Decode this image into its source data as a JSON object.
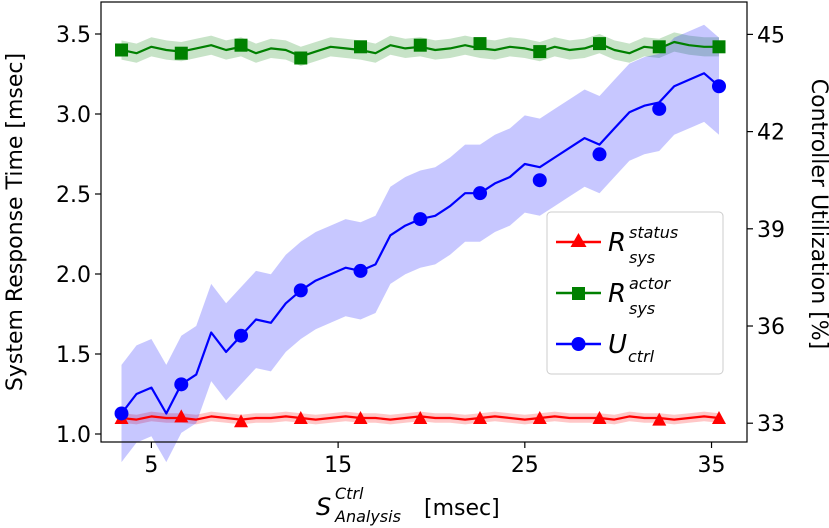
{
  "chart_data": {
    "type": "line",
    "xlabel": {
      "main": "S",
      "sup": "Ctrl",
      "sub": "Analysis",
      "unit": "[msec]"
    },
    "ylabel_left": "System Response Time [msec]",
    "ylabel_right": "Controller Utilization [%]",
    "xlim": [
      2.3,
      36.9
    ],
    "ylim_left": [
      0.95,
      3.7
    ],
    "ylim_right": [
      32.42,
      46.0
    ],
    "xticks": [
      5,
      15,
      25,
      35
    ],
    "yticks_left": [
      1.0,
      1.5,
      2.0,
      2.5,
      3.0,
      3.5
    ],
    "yticks_right": [
      33,
      36,
      39,
      42,
      45
    ],
    "legend_position": "center-right",
    "grid": false,
    "series": [
      {
        "legend_main": "R",
        "legend_sup": "status",
        "legend_sub": "sys",
        "axis": "left",
        "color": "#ff0000",
        "marker": "triangle",
        "x": [
          3.4,
          4.2,
          5.0,
          5.8,
          6.6,
          7.4,
          8.2,
          9.0,
          9.8,
          10.6,
          11.4,
          12.2,
          13.0,
          13.8,
          14.6,
          15.4,
          16.2,
          17.0,
          17.8,
          18.6,
          19.4,
          20.2,
          21.0,
          21.8,
          22.6,
          23.4,
          24.2,
          25.0,
          25.8,
          26.6,
          27.4,
          28.2,
          29.0,
          29.8,
          30.6,
          31.4,
          32.2,
          33.0,
          33.8,
          34.6,
          35.4
        ],
        "y": [
          1.1,
          1.09,
          1.11,
          1.1,
          1.1,
          1.09,
          1.11,
          1.1,
          1.09,
          1.1,
          1.1,
          1.11,
          1.1,
          1.09,
          1.1,
          1.11,
          1.1,
          1.1,
          1.09,
          1.1,
          1.11,
          1.1,
          1.1,
          1.09,
          1.1,
          1.11,
          1.1,
          1.09,
          1.1,
          1.11,
          1.1,
          1.1,
          1.1,
          1.09,
          1.11,
          1.1,
          1.1,
          1.09,
          1.1,
          1.11,
          1.1
        ],
        "band": 0.03,
        "marker_x": [
          3.4,
          6.6,
          9.8,
          13.0,
          16.2,
          19.4,
          22.6,
          25.8,
          29.0,
          32.2,
          35.4
        ],
        "marker_y": [
          1.1,
          1.11,
          1.08,
          1.1,
          1.1,
          1.1,
          1.1,
          1.1,
          1.1,
          1.09,
          1.1
        ]
      },
      {
        "legend_main": "R",
        "legend_sup": "actor",
        "legend_sub": "sys",
        "axis": "left",
        "color": "#008000",
        "marker": "square",
        "x": [
          3.4,
          4.2,
          5.0,
          5.8,
          6.6,
          7.4,
          8.2,
          9.0,
          9.8,
          10.6,
          11.4,
          12.2,
          13.0,
          13.8,
          14.6,
          15.4,
          16.2,
          17.0,
          17.8,
          18.6,
          19.4,
          20.2,
          21.0,
          21.8,
          22.6,
          23.4,
          24.2,
          25.0,
          25.8,
          26.6,
          27.4,
          28.2,
          29.0,
          29.8,
          30.6,
          31.4,
          32.2,
          33.0,
          33.8,
          34.6,
          35.4
        ],
        "y": [
          3.4,
          3.38,
          3.42,
          3.4,
          3.39,
          3.41,
          3.43,
          3.4,
          3.42,
          3.38,
          3.41,
          3.4,
          3.36,
          3.39,
          3.42,
          3.41,
          3.4,
          3.38,
          3.43,
          3.41,
          3.42,
          3.4,
          3.41,
          3.43,
          3.41,
          3.4,
          3.42,
          3.41,
          3.39,
          3.42,
          3.4,
          3.41,
          3.44,
          3.4,
          3.38,
          3.42,
          3.41,
          3.45,
          3.43,
          3.42,
          3.42
        ],
        "band": 0.06,
        "marker_x": [
          3.4,
          6.6,
          9.8,
          13.0,
          16.2,
          19.4,
          22.6,
          25.8,
          29.0,
          32.2,
          35.4
        ],
        "marker_y": [
          3.4,
          3.38,
          3.43,
          3.35,
          3.42,
          3.43,
          3.44,
          3.39,
          3.44,
          3.42,
          3.42
        ]
      },
      {
        "legend_main": "U",
        "legend_sup": "",
        "legend_sub": "ctrl",
        "axis": "right",
        "color": "#0000ff",
        "marker": "circle",
        "x": [
          3.4,
          4.2,
          5.0,
          5.8,
          6.6,
          7.4,
          8.2,
          9.0,
          9.8,
          10.6,
          11.4,
          12.2,
          13.0,
          13.8,
          14.6,
          15.4,
          16.2,
          17.0,
          17.8,
          18.6,
          19.4,
          20.2,
          21.0,
          21.8,
          22.6,
          23.4,
          24.2,
          25.0,
          25.8,
          26.6,
          27.4,
          28.2,
          29.0,
          29.8,
          30.6,
          31.4,
          32.2,
          33.0,
          33.8,
          34.6,
          35.4
        ],
        "y": [
          33.3,
          33.9,
          34.1,
          33.3,
          34.2,
          34.5,
          35.8,
          35.2,
          35.7,
          36.2,
          36.1,
          36.7,
          37.1,
          37.4,
          37.6,
          37.8,
          37.7,
          37.9,
          38.8,
          39.1,
          39.3,
          39.4,
          39.7,
          40.1,
          40.1,
          40.4,
          40.6,
          41.0,
          40.9,
          41.2,
          41.5,
          41.8,
          41.6,
          42.1,
          42.6,
          42.8,
          42.9,
          43.4,
          43.6,
          43.8,
          43.4
        ],
        "band": 1.5,
        "marker_x": [
          3.4,
          6.6,
          9.8,
          13.0,
          16.2,
          19.4,
          22.6,
          25.8,
          29.0,
          32.2,
          35.4
        ],
        "marker_y": [
          33.3,
          34.2,
          35.7,
          37.1,
          37.7,
          39.3,
          40.1,
          40.5,
          41.3,
          42.7,
          43.4
        ]
      }
    ]
  }
}
